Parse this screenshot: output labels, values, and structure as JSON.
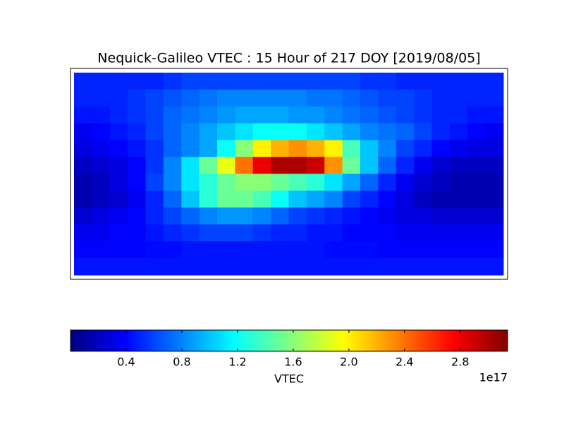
{
  "chart_data": {
    "type": "heatmap",
    "title": "Nequick-Galileo VTEC : 15 Hour of 217 DOY [2019/08/05]",
    "colormap": "jet",
    "values": [
      [
        0.5,
        0.5,
        0.5,
        0.5,
        0.5,
        0.55,
        0.6,
        0.6,
        0.6,
        0.6,
        0.6,
        0.6,
        0.6,
        0.6,
        0.6,
        0.6,
        0.55,
        0.55,
        0.5,
        0.5,
        0.5,
        0.5,
        0.5,
        0.5
      ],
      [
        0.5,
        0.5,
        0.5,
        0.55,
        0.6,
        0.65,
        0.7,
        0.75,
        0.8,
        0.8,
        0.8,
        0.8,
        0.8,
        0.75,
        0.75,
        0.7,
        0.65,
        0.6,
        0.6,
        0.55,
        0.5,
        0.5,
        0.5,
        0.5
      ],
      [
        0.45,
        0.45,
        0.5,
        0.55,
        0.6,
        0.7,
        0.75,
        0.8,
        0.85,
        0.9,
        0.9,
        0.9,
        0.85,
        0.85,
        0.8,
        0.75,
        0.7,
        0.65,
        0.6,
        0.55,
        0.5,
        0.5,
        0.45,
        0.45
      ],
      [
        0.35,
        0.4,
        0.45,
        0.5,
        0.6,
        0.7,
        0.8,
        0.9,
        1.0,
        1.1,
        1.2,
        1.2,
        1.2,
        1.1,
        1.0,
        0.9,
        0.8,
        0.75,
        0.7,
        0.6,
        0.5,
        0.45,
        0.4,
        0.35
      ],
      [
        0.3,
        0.35,
        0.4,
        0.45,
        0.55,
        0.7,
        0.8,
        0.9,
        1.2,
        1.6,
        2.0,
        2.2,
        2.3,
        2.2,
        2.0,
        1.4,
        1.0,
        0.8,
        0.6,
        0.5,
        0.4,
        0.35,
        0.3,
        0.3
      ],
      [
        0.2,
        0.25,
        0.3,
        0.4,
        0.55,
        0.8,
        1.1,
        1.5,
        1.9,
        2.4,
        2.8,
        3.0,
        3.0,
        2.9,
        2.3,
        1.5,
        1.0,
        0.7,
        0.5,
        0.35,
        0.25,
        0.2,
        0.2,
        0.2
      ],
      [
        0.15,
        0.2,
        0.3,
        0.4,
        0.6,
        0.8,
        1.1,
        1.3,
        1.5,
        1.6,
        1.6,
        1.5,
        1.4,
        1.3,
        1.1,
        0.9,
        0.7,
        0.5,
        0.35,
        0.25,
        0.2,
        0.15,
        0.15,
        0.15
      ],
      [
        0.15,
        0.2,
        0.25,
        0.35,
        0.5,
        0.7,
        1.0,
        1.3,
        1.5,
        1.5,
        1.4,
        1.2,
        1.0,
        0.9,
        0.8,
        0.6,
        0.5,
        0.4,
        0.3,
        0.2,
        0.15,
        0.15,
        0.15,
        0.15
      ],
      [
        0.25,
        0.3,
        0.35,
        0.4,
        0.5,
        0.6,
        0.7,
        0.8,
        0.85,
        0.85,
        0.8,
        0.7,
        0.6,
        0.55,
        0.5,
        0.45,
        0.4,
        0.35,
        0.3,
        0.3,
        0.25,
        0.25,
        0.25,
        0.25
      ],
      [
        0.35,
        0.35,
        0.4,
        0.4,
        0.45,
        0.5,
        0.55,
        0.6,
        0.6,
        0.6,
        0.55,
        0.5,
        0.5,
        0.45,
        0.45,
        0.4,
        0.4,
        0.4,
        0.35,
        0.35,
        0.35,
        0.35,
        0.35,
        0.35
      ],
      [
        0.4,
        0.4,
        0.4,
        0.4,
        0.42,
        0.42,
        0.45,
        0.45,
        0.45,
        0.45,
        0.45,
        0.45,
        0.45,
        0.45,
        0.42,
        0.42,
        0.42,
        0.4,
        0.4,
        0.4,
        0.4,
        0.4,
        0.4,
        0.4
      ],
      [
        0.45,
        0.45,
        0.45,
        0.45,
        0.45,
        0.45,
        0.45,
        0.45,
        0.45,
        0.45,
        0.45,
        0.45,
        0.45,
        0.45,
        0.45,
        0.45,
        0.45,
        0.45,
        0.45,
        0.45,
        0.45,
        0.45,
        0.45,
        0.45
      ]
    ],
    "colorbar": {
      "label": "VTEC",
      "offset_label": "1e17",
      "clim": [
        0,
        3.14
      ],
      "ticks": [
        0.4,
        0.8,
        1.2,
        1.6,
        {
          "value": 2,
          "label": "2.0"
        },
        2.4,
        2.8
      ]
    }
  }
}
